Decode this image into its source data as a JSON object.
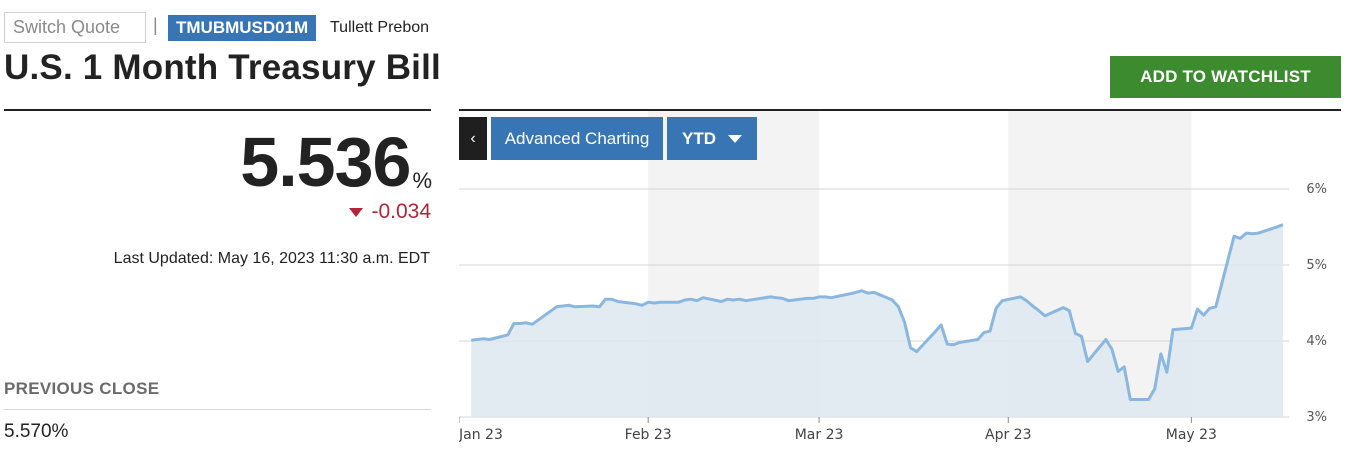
{
  "header": {
    "search_placeholder": "Switch Quote",
    "separator": "|",
    "ticker": "TMUBMUSD01M",
    "exchange": "Tullett Prebon",
    "title": "U.S. 1 Month Treasury Bill",
    "watchlist_label": "ADD TO WATCHLIST"
  },
  "quote": {
    "price": "5.536",
    "unit": "%",
    "change": "-0.034",
    "change_direction": "down",
    "last_updated": "Last Updated: May 16, 2023 11:30 a.m. EDT",
    "previous_close_label": "PREVIOUS CLOSE",
    "previous_close_value": "5.570%"
  },
  "chart_controls": {
    "collapse_icon": "chevron-left-icon",
    "collapse_glyph": "‹",
    "advanced_label": "Advanced Charting",
    "range_label": "YTD"
  },
  "colors": {
    "accent_blue": "#3875b5",
    "watchlist_green": "#3d8b2f",
    "negative_red": "#b0253a",
    "line": "#8ab7e0",
    "area_fill": "#dde7ef"
  },
  "chart_data": {
    "type": "area",
    "ylim": [
      3,
      6
    ],
    "yticks": [
      3,
      4,
      5,
      6
    ],
    "y_tick_labels": [
      "3%",
      "4%",
      "5%",
      "6%"
    ],
    "x_tick_labels": [
      "Jan 23",
      "Feb 23",
      "Mar 23",
      "Apr 23",
      "May 23"
    ],
    "x_tick_dates": [
      "2023-01-01",
      "2023-02-01",
      "2023-03-01",
      "2023-04-01",
      "2023-05-01"
    ],
    "x_range": [
      "2023-01-01",
      "2023-05-17"
    ],
    "grid": true,
    "month_shading": true,
    "series": [
      {
        "points": [
          [
            "2023-01-03",
            4.01
          ],
          [
            "2023-01-04",
            4.02
          ],
          [
            "2023-01-05",
            4.03
          ],
          [
            "2023-01-06",
            4.02
          ],
          [
            "2023-01-09",
            4.08
          ],
          [
            "2023-01-10",
            4.23
          ],
          [
            "2023-01-11",
            4.23
          ],
          [
            "2023-01-12",
            4.24
          ],
          [
            "2023-01-13",
            4.22
          ],
          [
            "2023-01-17",
            4.45
          ],
          [
            "2023-01-18",
            4.46
          ],
          [
            "2023-01-19",
            4.47
          ],
          [
            "2023-01-20",
            4.45
          ],
          [
            "2023-01-23",
            4.46
          ],
          [
            "2023-01-24",
            4.45
          ],
          [
            "2023-01-25",
            4.55
          ],
          [
            "2023-01-26",
            4.55
          ],
          [
            "2023-01-27",
            4.52
          ],
          [
            "2023-01-30",
            4.49
          ],
          [
            "2023-01-31",
            4.47
          ],
          [
            "2023-02-01",
            4.51
          ],
          [
            "2023-02-02",
            4.5
          ],
          [
            "2023-02-03",
            4.51
          ],
          [
            "2023-02-06",
            4.51
          ],
          [
            "2023-02-07",
            4.54
          ],
          [
            "2023-02-08",
            4.55
          ],
          [
            "2023-02-09",
            4.53
          ],
          [
            "2023-02-10",
            4.57
          ],
          [
            "2023-02-13",
            4.52
          ],
          [
            "2023-02-14",
            4.55
          ],
          [
            "2023-02-15",
            4.54
          ],
          [
            "2023-02-16",
            4.55
          ],
          [
            "2023-02-17",
            4.53
          ],
          [
            "2023-02-21",
            4.58
          ],
          [
            "2023-02-22",
            4.57
          ],
          [
            "2023-02-23",
            4.56
          ],
          [
            "2023-02-24",
            4.53
          ],
          [
            "2023-02-27",
            4.56
          ],
          [
            "2023-02-28",
            4.56
          ],
          [
            "2023-03-01",
            4.58
          ],
          [
            "2023-03-02",
            4.58
          ],
          [
            "2023-03-03",
            4.57
          ],
          [
            "2023-03-06",
            4.62
          ],
          [
            "2023-03-07",
            4.64
          ],
          [
            "2023-03-08",
            4.66
          ],
          [
            "2023-03-09",
            4.63
          ],
          [
            "2023-03-10",
            4.64
          ],
          [
            "2023-03-13",
            4.54
          ],
          [
            "2023-03-14",
            4.45
          ],
          [
            "2023-03-15",
            4.25
          ],
          [
            "2023-03-16",
            3.91
          ],
          [
            "2023-03-17",
            3.86
          ],
          [
            "2023-03-20",
            4.12
          ],
          [
            "2023-03-21",
            4.21
          ],
          [
            "2023-03-22",
            3.96
          ],
          [
            "2023-03-23",
            3.95
          ],
          [
            "2023-03-24",
            3.98
          ],
          [
            "2023-03-27",
            4.02
          ],
          [
            "2023-03-28",
            4.11
          ],
          [
            "2023-03-29",
            4.13
          ],
          [
            "2023-03-30",
            4.43
          ],
          [
            "2023-03-31",
            4.53
          ],
          [
            "2023-04-03",
            4.58
          ],
          [
            "2023-04-04",
            4.53
          ],
          [
            "2023-04-05",
            4.46
          ],
          [
            "2023-04-06",
            4.4
          ],
          [
            "2023-04-07",
            4.33
          ],
          [
            "2023-04-10",
            4.44
          ],
          [
            "2023-04-11",
            4.4
          ],
          [
            "2023-04-12",
            4.1
          ],
          [
            "2023-04-13",
            4.06
          ],
          [
            "2023-04-14",
            3.73
          ],
          [
            "2023-04-17",
            4.02
          ],
          [
            "2023-04-18",
            3.89
          ],
          [
            "2023-04-19",
            3.6
          ],
          [
            "2023-04-20",
            3.66
          ],
          [
            "2023-04-21",
            3.23
          ],
          [
            "2023-04-24",
            3.23
          ],
          [
            "2023-04-25",
            3.37
          ],
          [
            "2023-04-26",
            3.83
          ],
          [
            "2023-04-27",
            3.59
          ],
          [
            "2023-04-28",
            4.15
          ],
          [
            "2023-05-01",
            4.17
          ],
          [
            "2023-05-02",
            4.42
          ],
          [
            "2023-05-03",
            4.34
          ],
          [
            "2023-05-04",
            4.43
          ],
          [
            "2023-05-05",
            4.45
          ],
          [
            "2023-05-08",
            5.38
          ],
          [
            "2023-05-09",
            5.35
          ],
          [
            "2023-05-10",
            5.42
          ],
          [
            "2023-05-11",
            5.41
          ],
          [
            "2023-05-12",
            5.42
          ],
          [
            "2023-05-15",
            5.5
          ],
          [
            "2023-05-16",
            5.53
          ]
        ]
      }
    ]
  }
}
